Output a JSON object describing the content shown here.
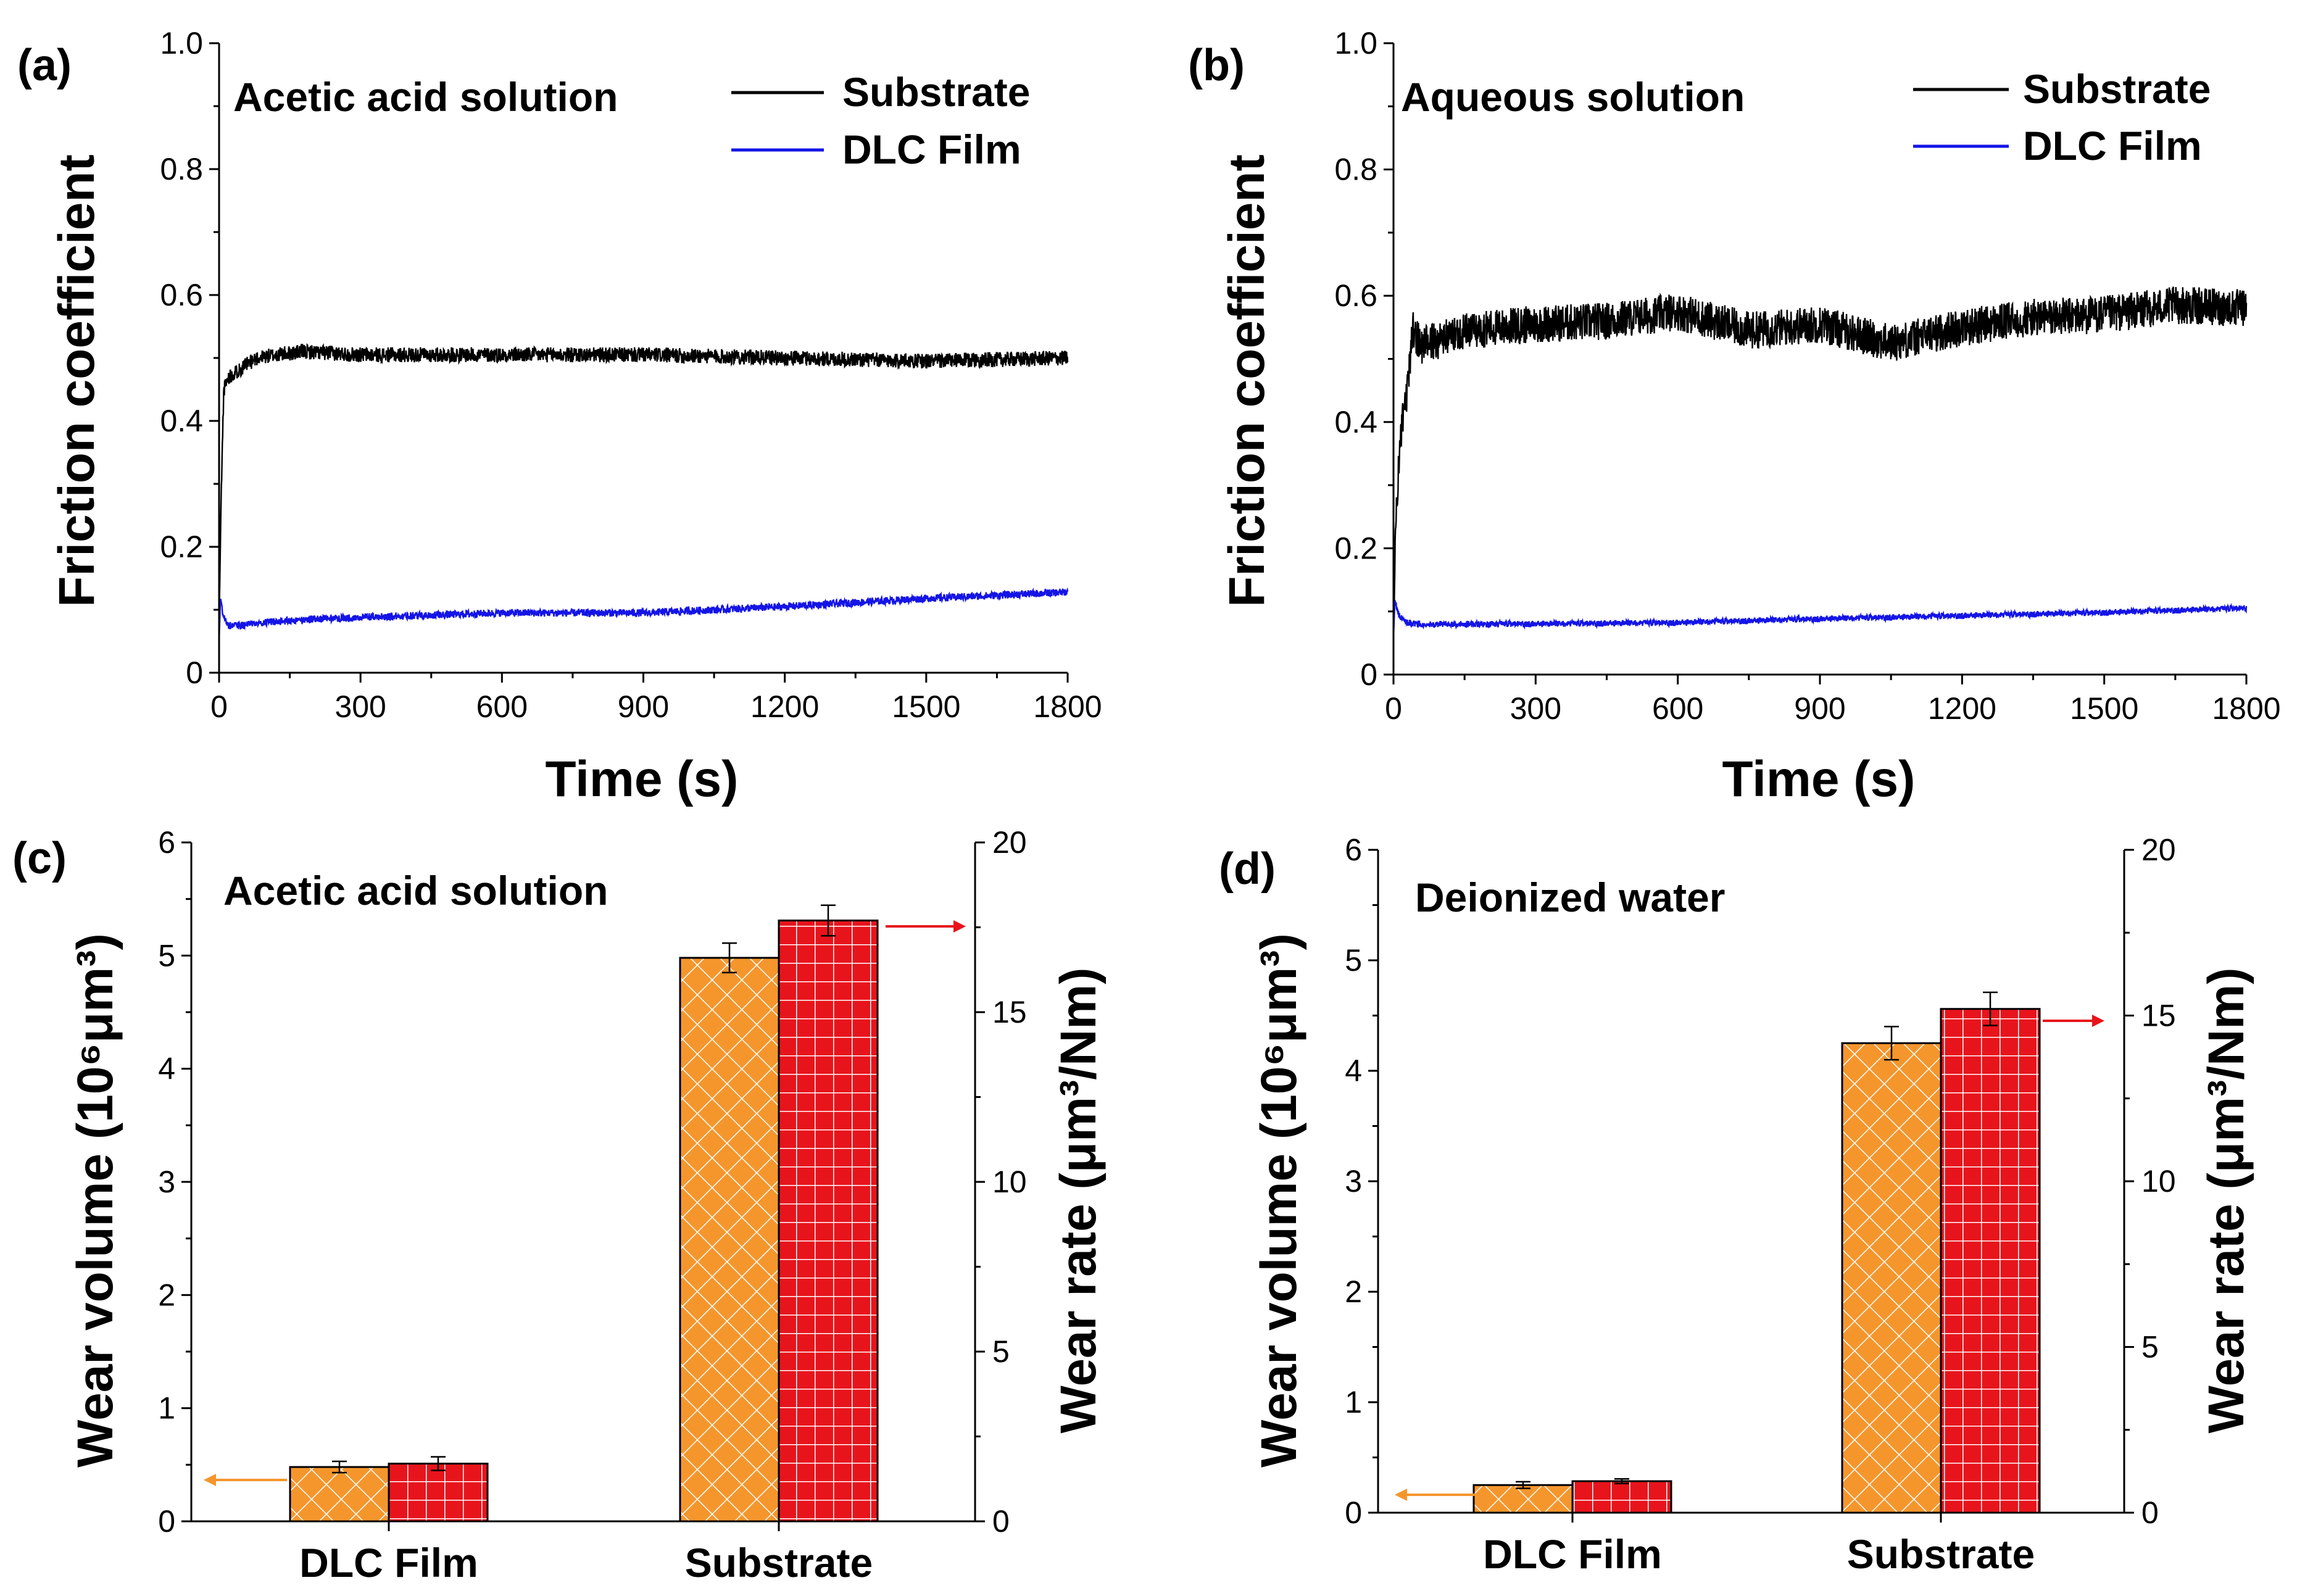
{
  "chart_data": [
    {
      "panel": "(a)",
      "type": "line",
      "inner_title": "Acetic acid solution",
      "xlabel": "Time (s)",
      "ylabel": "Friction coefficient",
      "xlim": [
        0,
        1800
      ],
      "ylim": [
        0,
        1.0
      ],
      "x_ticks": [
        "0",
        "300",
        "600",
        "900",
        "1200",
        "1500",
        "1800"
      ],
      "y_ticks": [
        "0",
        "0.2",
        "0.4",
        "0.6",
        "0.8",
        "1.0"
      ],
      "series": [
        {
          "name": "Substrate",
          "color": "#000000",
          "noise": 0.012,
          "x": [
            0,
            5,
            10,
            20,
            40,
            80,
            120,
            180,
            300,
            600,
            900,
            1200,
            1500,
            1800
          ],
          "y": [
            0.08,
            0.3,
            0.45,
            0.47,
            0.48,
            0.5,
            0.505,
            0.51,
            0.505,
            0.505,
            0.505,
            0.5,
            0.495,
            0.5
          ]
        },
        {
          "name": "DLC Film",
          "color": "#1414e6",
          "noise": 0.006,
          "x": [
            0,
            3,
            8,
            20,
            50,
            100,
            200,
            300,
            600,
            900,
            1200,
            1500,
            1800
          ],
          "y": [
            0.05,
            0.12,
            0.09,
            0.075,
            0.075,
            0.08,
            0.085,
            0.088,
            0.095,
            0.095,
            0.105,
            0.118,
            0.128
          ]
        }
      ]
    },
    {
      "panel": "(b)",
      "type": "line",
      "inner_title": "Aqueous solution",
      "xlabel": "Time (s)",
      "ylabel": "Friction coefficient",
      "xlim": [
        0,
        1800
      ],
      "ylim": [
        0,
        1.0
      ],
      "x_ticks": [
        "0",
        "300",
        "600",
        "900",
        "1200",
        "1500",
        "1800"
      ],
      "y_ticks": [
        "0",
        "0.2",
        "0.4",
        "0.6",
        "0.8",
        "1.0"
      ],
      "series": [
        {
          "name": "Substrate",
          "color": "#000000",
          "noise": 0.03,
          "x": [
            0,
            5,
            15,
            30,
            40,
            60,
            150,
            300,
            450,
            600,
            750,
            900,
            1050,
            1200,
            1350,
            1500,
            1650,
            1800
          ],
          "y": [
            0.05,
            0.25,
            0.38,
            0.45,
            0.55,
            0.52,
            0.545,
            0.555,
            0.56,
            0.575,
            0.545,
            0.555,
            0.525,
            0.55,
            0.565,
            0.57,
            0.585,
            0.58
          ]
        },
        {
          "name": "DLC Film",
          "color": "#1414e6",
          "noise": 0.005,
          "x": [
            0,
            3,
            8,
            15,
            30,
            60,
            300,
            600,
            900,
            1200,
            1500,
            1800
          ],
          "y": [
            0.06,
            0.12,
            0.1,
            0.09,
            0.082,
            0.08,
            0.08,
            0.082,
            0.088,
            0.093,
            0.098,
            0.105
          ]
        }
      ]
    },
    {
      "panel": "(c)",
      "type": "bar",
      "inner_title": "Acetic acid solution",
      "categories": [
        "DLC Film",
        "Substrate"
      ],
      "ylabel_left": "Wear volume (10⁶μm³)",
      "ylabel_right": "Wear rate (μm³/Nm)",
      "ylim_left": [
        0,
        6
      ],
      "ylim_right": [
        0,
        20
      ],
      "y_ticks_left": [
        "0",
        "1",
        "2",
        "3",
        "4",
        "5",
        "6"
      ],
      "y_ticks_right": [
        "0",
        "5",
        "10",
        "15",
        "20"
      ],
      "series": [
        {
          "name": "Wear volume",
          "axis": "left",
          "color": "#f5962d",
          "values": [
            0.48,
            4.98
          ],
          "errors": [
            0.05,
            0.13
          ]
        },
        {
          "name": "Wear rate",
          "axis": "right",
          "color": "#e8141c",
          "values": [
            1.7,
            17.7
          ],
          "errors": [
            0.2,
            0.45
          ]
        }
      ]
    },
    {
      "panel": "(d)",
      "type": "bar",
      "inner_title": "Deionized water",
      "categories": [
        "DLC Film",
        "Substrate"
      ],
      "ylabel_left": "Wear volume (10⁶μm³)",
      "ylabel_right": "Wear rate (μm³/Nm)",
      "ylim_left": [
        0,
        6
      ],
      "ylim_right": [
        0,
        20
      ],
      "y_ticks_left": [
        "0",
        "1",
        "2",
        "3",
        "4",
        "5",
        "6"
      ],
      "y_ticks_right": [
        "0",
        "5",
        "10",
        "15",
        "20"
      ],
      "series": [
        {
          "name": "Wear volume",
          "axis": "left",
          "color": "#f5962d",
          "values": [
            0.25,
            4.25
          ],
          "errors": [
            0.03,
            0.15
          ]
        },
        {
          "name": "Wear rate",
          "axis": "right",
          "color": "#e8141c",
          "values": [
            0.95,
            15.2
          ],
          "errors": [
            0.07,
            0.5
          ]
        }
      ]
    }
  ]
}
